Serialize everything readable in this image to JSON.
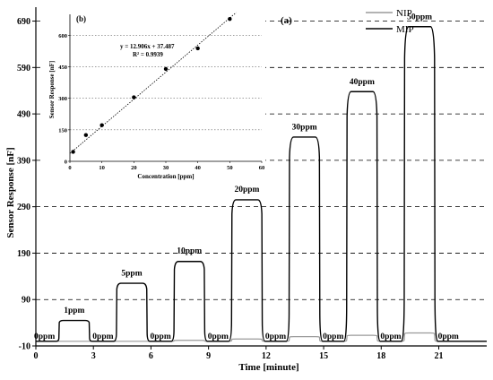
{
  "chart_data": [
    {
      "type": "line",
      "panel_label": "(a)",
      "xlabel": "Time [minute]",
      "ylabel": "Sensor Response [nF]",
      "xlim": [
        0,
        23.5
      ],
      "ylim": [
        -10,
        720
      ],
      "x_ticks": [
        0,
        3,
        6,
        9,
        12,
        15,
        18,
        21
      ],
      "y_ticks": [
        -10,
        90,
        190,
        290,
        390,
        490,
        590,
        690
      ],
      "y_tick_labels": [
        "-10",
        "90",
        "190",
        "290",
        "390",
        "490",
        "590",
        "690"
      ],
      "grid": "horizontal dashed",
      "legend": "top-right",
      "series": [
        {
          "name": "NIP",
          "color": "#9a9a9a",
          "steps": [
            {
              "start": 1.2,
              "end": 2.8,
              "level": 0
            },
            {
              "start": 4.2,
              "end": 5.8,
              "level": 0
            },
            {
              "start": 7.2,
              "end": 8.8,
              "level": 2
            },
            {
              "start": 10.2,
              "end": 11.8,
              "level": 5
            },
            {
              "start": 13.2,
              "end": 14.8,
              "level": 10
            },
            {
              "start": 16.2,
              "end": 17.8,
              "level": 13
            },
            {
              "start": 19.2,
              "end": 20.8,
              "level": 18
            }
          ]
        },
        {
          "name": "MIP",
          "color": "#000000",
          "steps": [
            {
              "start": 1.2,
              "end": 2.8,
              "level": 45
            },
            {
              "start": 4.2,
              "end": 5.8,
              "level": 125
            },
            {
              "start": 7.2,
              "end": 8.8,
              "level": 172
            },
            {
              "start": 10.2,
              "end": 11.8,
              "level": 305
            },
            {
              "start": 13.2,
              "end": 14.8,
              "level": 440
            },
            {
              "start": 16.2,
              "end": 17.8,
              "level": 538
            },
            {
              "start": 19.2,
              "end": 20.8,
              "level": 678
            }
          ]
        }
      ],
      "annotations": [
        {
          "text": "1ppm",
          "x": 2.0,
          "y": 58
        },
        {
          "text": "5ppm",
          "x": 5.0,
          "y": 138
        },
        {
          "text": "10ppm",
          "x": 8.0,
          "y": 186
        },
        {
          "text": "20ppm",
          "x": 11.0,
          "y": 318
        },
        {
          "text": "30ppm",
          "x": 14.0,
          "y": 453
        },
        {
          "text": "40ppm",
          "x": 17.0,
          "y": 550
        },
        {
          "text": "50ppm",
          "x": 20.0,
          "y": 690
        },
        {
          "text": "0ppm",
          "x": 0.45,
          "y": 2
        },
        {
          "text": "0ppm",
          "x": 3.5,
          "y": 2
        },
        {
          "text": "0ppm",
          "x": 6.5,
          "y": 2
        },
        {
          "text": "0ppm",
          "x": 9.5,
          "y": 2
        },
        {
          "text": "0ppm",
          "x": 12.5,
          "y": 2
        },
        {
          "text": "0ppm",
          "x": 15.5,
          "y": 2
        },
        {
          "text": "0ppm",
          "x": 18.5,
          "y": 2
        },
        {
          "text": "0ppm",
          "x": 21.5,
          "y": 2
        }
      ]
    },
    {
      "type": "scatter",
      "panel_label": "(b)",
      "xlabel": "Concentration [ppm]",
      "ylabel": "Sensor Response [nF]",
      "xlim": [
        0,
        60
      ],
      "ylim": [
        0,
        700
      ],
      "x_ticks": [
        0,
        10,
        20,
        30,
        40,
        50,
        60
      ],
      "y_ticks": [
        0,
        150,
        300,
        450,
        600
      ],
      "grid": "horizontal dotted",
      "points": [
        {
          "x": 1,
          "y": 45
        },
        {
          "x": 5,
          "y": 125
        },
        {
          "x": 10,
          "y": 172
        },
        {
          "x": 20,
          "y": 305
        },
        {
          "x": 30,
          "y": 440
        },
        {
          "x": 40,
          "y": 538
        },
        {
          "x": 50,
          "y": 678
        }
      ],
      "fit": {
        "slope": 12.906,
        "intercept": 37.487
      },
      "equation": "y = 12.906x + 37.487",
      "r_squared": "R² = 0.9939"
    }
  ]
}
